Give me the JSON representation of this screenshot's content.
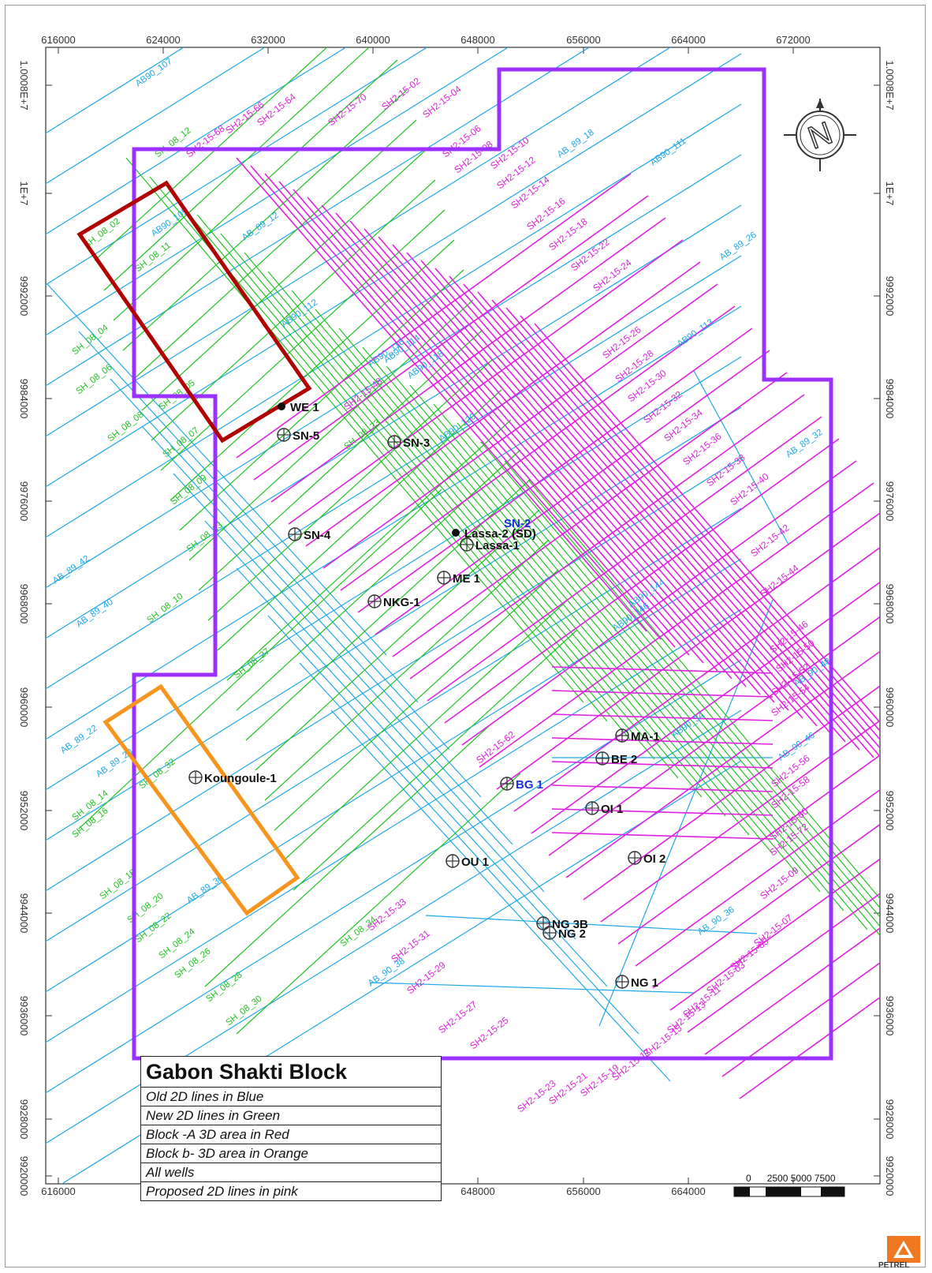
{
  "map": {
    "x_ticks": [
      "616000",
      "624000",
      "632000",
      "640000",
      "648000",
      "656000",
      "664000",
      "672000"
    ],
    "y_ticks": [
      "1.0008E+7",
      "1E+7",
      "9992000",
      "9984000",
      "9976000",
      "9968000",
      "9960000",
      "9952000",
      "9944000",
      "9936000",
      "9928000",
      "9920000"
    ],
    "north_label": "N"
  },
  "legend": {
    "title": "Gabon Shakti Block",
    "items": [
      "Old 2D lines in Blue",
      "New 2D lines in Green",
      "Block -A 3D area in Red",
      "Block b- 3D area in Orange",
      "All wells",
      "Proposed 2D lines in pink"
    ]
  },
  "scale_bar": {
    "labels": [
      "0",
      "2500",
      "5000",
      "7500"
    ]
  },
  "logo": {
    "text": "PETREL"
  },
  "wells": [
    {
      "name": "WE 1",
      "type": "dot"
    },
    {
      "name": "SN-5",
      "type": "circle"
    },
    {
      "name": "SN-3",
      "type": "circle"
    },
    {
      "name": "SN-4",
      "type": "circle"
    },
    {
      "name": "SN-2",
      "type": "label"
    },
    {
      "name": "Lassa-2 (SD)",
      "type": "dot"
    },
    {
      "name": "Lassa-1",
      "type": "circle"
    },
    {
      "name": "ME 1",
      "type": "circle"
    },
    {
      "name": "NKG-1",
      "type": "circle"
    },
    {
      "name": "MA-1",
      "type": "circle"
    },
    {
      "name": "BE 2",
      "type": "circle"
    },
    {
      "name": "BG 1",
      "type": "circle"
    },
    {
      "name": "OI 1",
      "type": "circle"
    },
    {
      "name": "OI 2",
      "type": "circle"
    },
    {
      "name": "OU 1",
      "type": "circle"
    },
    {
      "name": "Koungoule-1",
      "type": "circle"
    },
    {
      "name": "NG 3B",
      "type": "circle"
    },
    {
      "name": "NG 2",
      "type": "circle"
    },
    {
      "name": "NG 1",
      "type": "circle"
    }
  ],
  "pink_labels": [
    "SH2-15-02",
    "SH2-15-04",
    "SH2-15-06",
    "SH2-15-08",
    "SH2-15-10",
    "SH2-15-12",
    "SH2-15-14",
    "SH2-15-16",
    "SH2-15-18",
    "SH2-15-22",
    "SH2-15-24",
    "SH2-15-26",
    "SH2-15-28",
    "SH2-15-30",
    "SH2-15-32",
    "SH2-15-34",
    "SH2-15-36",
    "SH2-15-38",
    "SH2-15-40",
    "SH2-15-42",
    "SH2-15-44",
    "SH2-15-46",
    "SH2-15-50",
    "SH2-15-52",
    "SH2-15-54",
    "SH2-15-56",
    "SH2-15-58",
    "SH2-15-60",
    "SH2-15-62",
    "SH2-15-64",
    "SH2-15-66",
    "SH2-15-68",
    "SH2-15-70",
    "SH2-15-72",
    "SH2-15-09",
    "SH2-15-07",
    "SH2-15-05",
    "SH2-15-03",
    "SH2-15-11",
    "SH2-15-13",
    "SH2-15-15",
    "SH2-15-17",
    "SH2-15-19",
    "SH2-15-21",
    "SH2-15-23",
    "SH2-15-25",
    "SH2-15-27",
    "SH2-15-29",
    "SH2-15-31",
    "SH2-15-33",
    "SH2-15-48"
  ],
  "blue_labels": [
    "AB90_107",
    "AB_89_18",
    "AB90_111",
    "AB_89_26",
    "AB90_113",
    "AB_89_32",
    "AB90_144",
    "AB90_146",
    "AB_90_48",
    "AB_90_46",
    "AB_90_36",
    "AB_90_38",
    "AB_89_42",
    "AB_89_40",
    "AB_89_22",
    "AB_89_20",
    "AB_89_30",
    "AB90_105",
    "AB_89_12",
    "AB90_112",
    "AB90_116",
    "AB90_118",
    "AB90_120",
    "AB90_114",
    "AB90_34"
  ],
  "green_labels": [
    "SH_08_12",
    "SH_08_02",
    "SH_08_04",
    "SH_08_06",
    "SH_08_08",
    "SH_08_10",
    "SH_08_14",
    "SH_08_16",
    "SH_08_18",
    "SH_08_20",
    "SH_08_22",
    "SH_08_24",
    "SH_08_26",
    "SH_08_28",
    "SH_08_30",
    "SH_08_32",
    "SH_08_34",
    "SH_08_23",
    "SH_08_27",
    "SH_08_11",
    "SH_08_05",
    "SH_08_07",
    "SH_08_09",
    "SH_08_13"
  ],
  "colors": {
    "boundary": "#9b30ff",
    "old_2d": "#1ea8e8",
    "new_2d": "#22c322",
    "block_a": "#b00000",
    "block_b": "#f7941d",
    "proposed_2d": "#e020e0",
    "well_text": "#111111",
    "well_text_blue": "#1a2fd6"
  }
}
